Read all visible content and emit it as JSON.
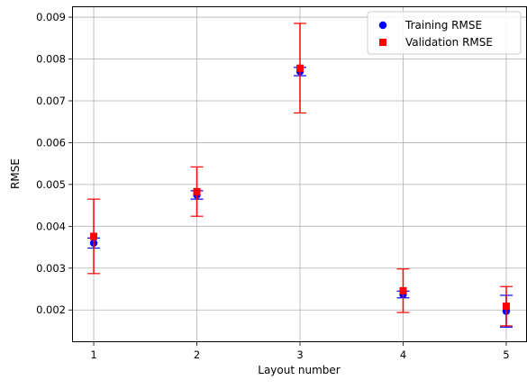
{
  "chart_data": {
    "type": "scatter",
    "title": "",
    "xlabel": "Layout number",
    "ylabel": "RMSE",
    "xlim": [
      0.79,
      5.21
    ],
    "ylim": [
      0.00123,
      0.00926
    ],
    "grid": true,
    "legend_position": "top-right",
    "x_ticks": [
      1,
      2,
      3,
      4,
      5
    ],
    "x_tick_labels": [
      "1",
      "2",
      "3",
      "4",
      "5"
    ],
    "y_ticks": [
      0.002,
      0.003,
      0.004,
      0.005,
      0.006,
      0.007,
      0.008,
      0.009
    ],
    "y_tick_labels": [
      "0.002",
      "0.003",
      "0.004",
      "0.005",
      "0.006",
      "0.007",
      "0.008",
      "0.009"
    ],
    "series": [
      {
        "name": "Training RMSE",
        "marker": "circle",
        "color": "#0000ff",
        "x": [
          1,
          2,
          3,
          4,
          5
        ],
        "values": [
          0.0036,
          0.00475,
          0.0077,
          0.00237,
          0.00197
        ],
        "error": [
          0.00012,
          0.0001,
          0.0001,
          8e-05,
          0.00038
        ]
      },
      {
        "name": "Validation RMSE",
        "marker": "square",
        "color": "#ff0000",
        "x": [
          1,
          2,
          3,
          4,
          5
        ],
        "values": [
          0.00376,
          0.00483,
          0.00778,
          0.00246,
          0.00209
        ],
        "error": [
          0.00089,
          0.00059,
          0.00107,
          0.00052,
          0.00047
        ]
      }
    ]
  }
}
